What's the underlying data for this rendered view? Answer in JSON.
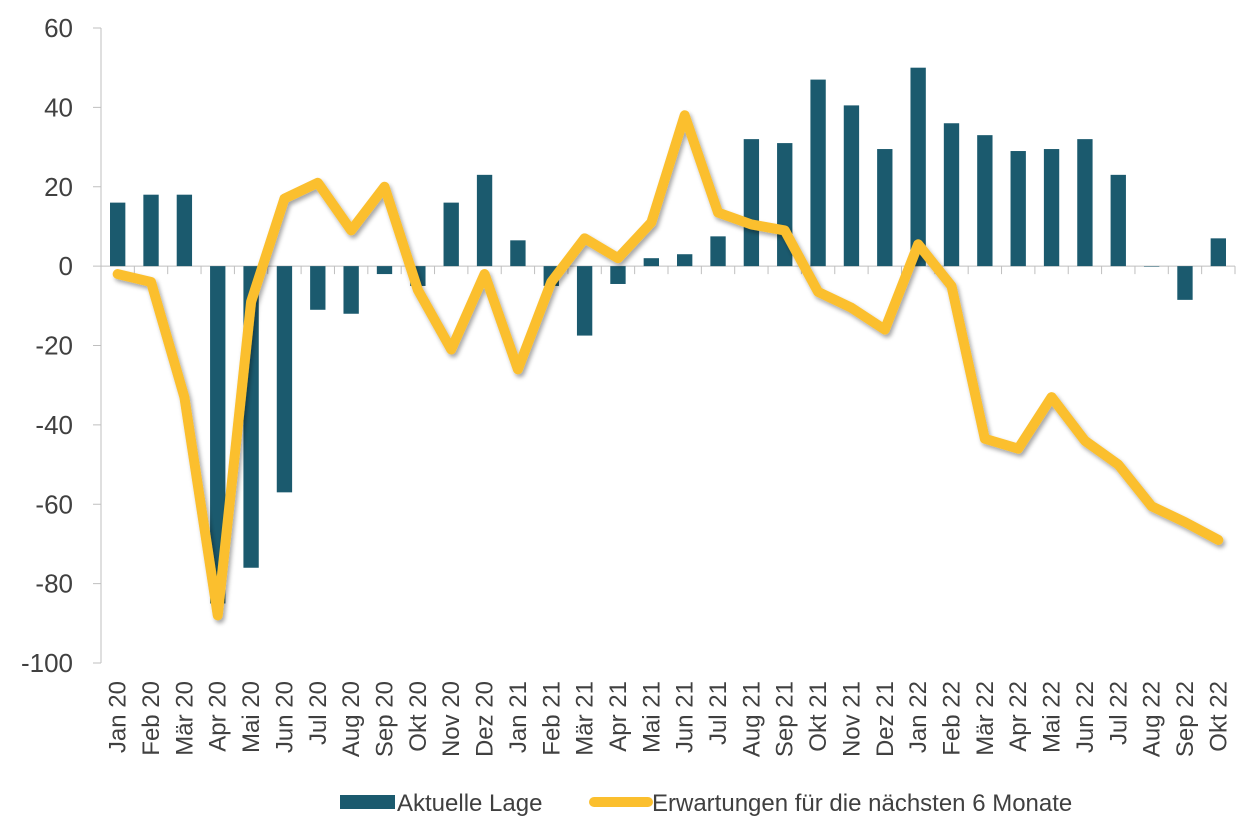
{
  "chart_data": {
    "type": "bar-line",
    "categories": [
      "Jan 20",
      "Feb 20",
      "Mär 20",
      "Apr 20",
      "Mai 20",
      "Jun 20",
      "Jul 20",
      "Aug 20",
      "Sep 20",
      "Okt 20",
      "Nov 20",
      "Dez 20",
      "Jan 21",
      "Feb 21",
      "Mär 21",
      "Apr 21",
      "Mai 21",
      "Jun 21",
      "Jul 21",
      "Aug 21",
      "Sep 21",
      "Okt 21",
      "Nov 21",
      "Dez 21",
      "Jan 22",
      "Feb 22",
      "Mär 22",
      "Apr 22",
      "Mai 22",
      "Jun 22",
      "Jul 22",
      "Aug 22",
      "Sep 22",
      "Okt 22"
    ],
    "series": [
      {
        "name": "Aktuelle Lage",
        "type": "bar",
        "color": "#1b5a6e",
        "values": [
          16,
          18,
          18,
          -85,
          -76,
          -57,
          -11,
          -12,
          -2,
          -5,
          16,
          23,
          6.5,
          -5,
          -17.5,
          -4.5,
          2,
          3,
          7.5,
          32,
          31,
          47,
          40.5,
          29.5,
          50,
          36,
          33,
          29,
          29.5,
          32,
          23,
          0,
          -8.5,
          7
        ]
      },
      {
        "name": "Erwartungen für die nächsten 6 Monate",
        "type": "line",
        "color": "#fbbf2e",
        "values": [
          -2,
          -4,
          -33,
          -88,
          -9,
          17,
          21,
          9,
          20,
          -6,
          -21,
          -2,
          -26,
          -4,
          7,
          2,
          11,
          38,
          13.5,
          10.5,
          9,
          -6.5,
          -10.5,
          -16,
          5.5,
          -5,
          -43.5,
          -46,
          -33,
          -44,
          -50,
          -60.5,
          -64.5,
          -69
        ]
      }
    ],
    "ylim": [
      -100,
      60
    ],
    "yticks": [
      -100,
      -80,
      -60,
      -40,
      -20,
      0,
      20,
      40,
      60
    ]
  }
}
